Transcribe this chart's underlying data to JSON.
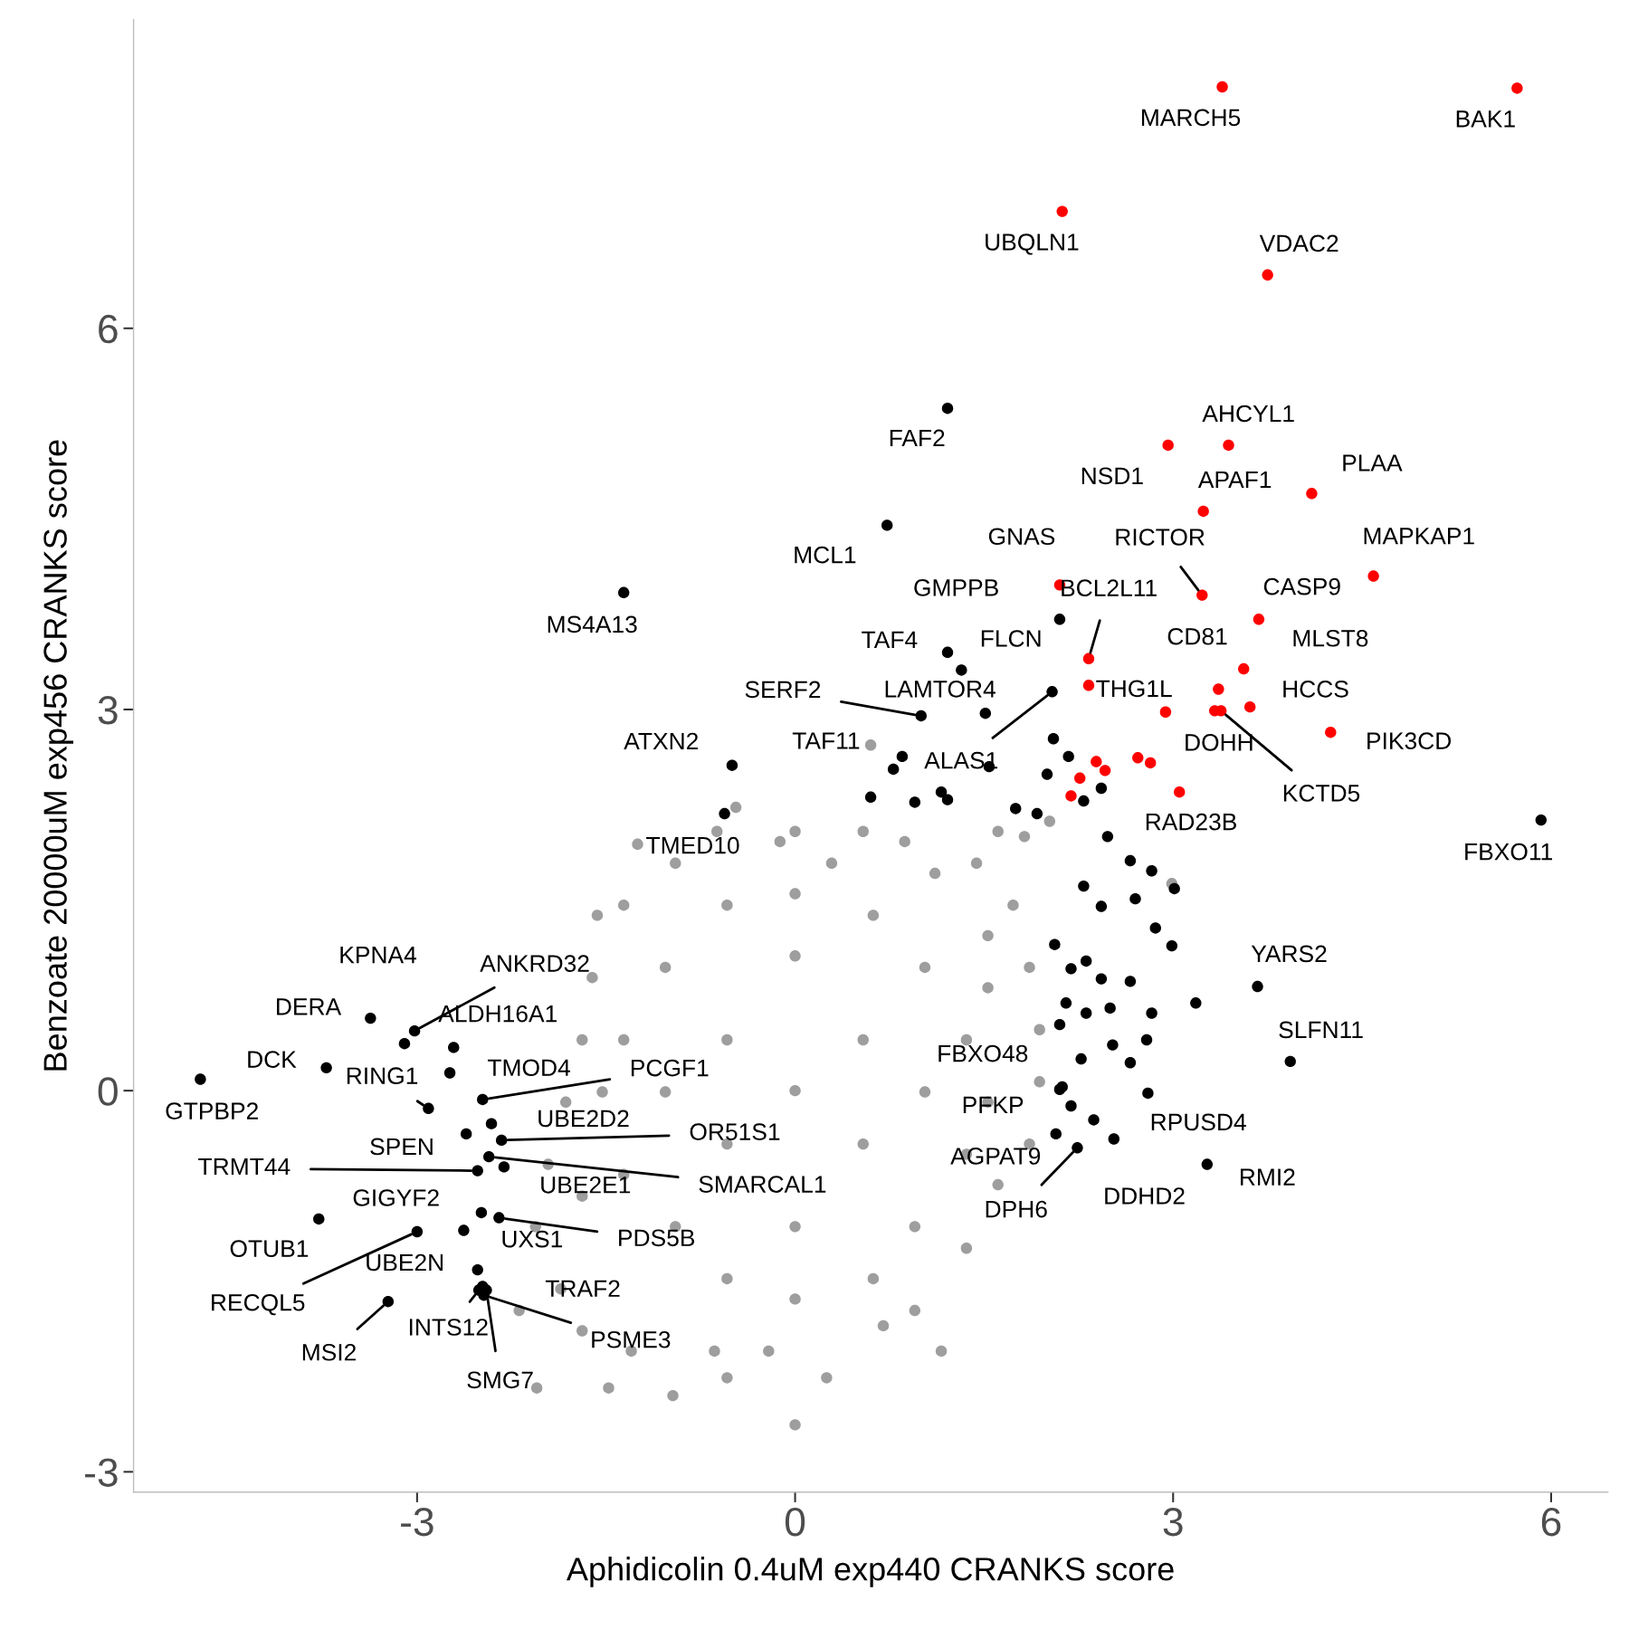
{
  "chart_data": {
    "type": "scatter",
    "xlabel": "Aphidicolin 0.4uM exp440 CRANKS score",
    "ylabel": "Benzoate 20000uM exp456 CRANKS score",
    "xlim": [
      -5.25,
      6.45
    ],
    "ylim": [
      -3.16,
      8.43
    ],
    "xticks": [
      -3,
      0,
      3,
      6
    ],
    "yticks": [
      -3,
      0,
      3,
      6
    ],
    "grid": false,
    "marker": "circle",
    "series": [
      {
        "color": "#9e9e9e",
        "x": [
          0,
          -0.54,
          -0.97,
          -1.48,
          -1.3,
          -1.69,
          -1.86,
          -2.05,
          -2.19,
          -2.06,
          -1.96,
          -1.82,
          -1.69,
          -1.61,
          -1.57,
          -1.36,
          -1.25,
          -0.95,
          -0.62,
          -0.47,
          -0.12,
          0,
          0.29,
          0.54,
          0.6,
          0.87,
          1.11,
          1.44,
          1.61,
          1.82,
          2.02,
          1.73,
          1.86,
          1.94,
          1.94,
          1.86,
          1.61,
          1.36,
          1.16,
          0.95,
          0.7,
          0.25,
          -0.21,
          -0.64,
          2.99,
          0,
          -0.54,
          0.54,
          -0.54,
          0.54,
          0,
          0,
          -1.03,
          1.03,
          -1.03,
          1.03,
          -0.95,
          0.95,
          -1.36,
          1.36,
          -1.36,
          1.36,
          0,
          0,
          -0.54,
          0.62,
          -0.54,
          0.62,
          1.53,
          1.53,
          -1.69,
          -1.53,
          1.53
        ],
        "values": [
          -2.63,
          -2.26,
          -2.4,
          -2.34,
          -2.05,
          -1.89,
          -1.56,
          -2.34,
          -1.73,
          -1.07,
          -0.58,
          -0.09,
          0.4,
          0.89,
          1.38,
          1.46,
          1.94,
          1.79,
          2.04,
          2.23,
          1.96,
          2.04,
          1.79,
          2.04,
          2.72,
          1.96,
          1.71,
          1.79,
          2.04,
          2.0,
          2.12,
          1.46,
          0.97,
          0.48,
          0.07,
          -0.42,
          -0.74,
          -1.24,
          -2.05,
          -1.73,
          -1.85,
          -2.26,
          -2.05,
          -2.05,
          1.63,
          0,
          0.4,
          0.4,
          -0.42,
          -0.42,
          1.06,
          -1.07,
          -0.01,
          -0.01,
          0.97,
          0.97,
          -1.07,
          -1.07,
          0.4,
          0.4,
          -0.66,
          -0.5,
          1.55,
          -1.64,
          1.46,
          1.38,
          -1.48,
          -1.48,
          0.81,
          -0.09,
          -0.83,
          -0.01,
          1.22
        ]
      },
      {
        "color": "#000000",
        "x": [
          1.21,
          0.73,
          -1.36,
          2.1,
          1.21,
          1.32,
          1.0,
          1.51,
          -0.5,
          0.85,
          2.04,
          -0.56,
          2.48,
          5.92,
          -3.1,
          -3.02,
          -3.37,
          -2.71,
          3.67,
          -3.72,
          -2.91,
          -2.74,
          -2.48,
          3.93,
          2.1,
          -4.72,
          2.19,
          -2.41,
          -2.33,
          2.53,
          -2.61,
          2.07,
          -2.52,
          -2.43,
          -2.31,
          3.27,
          2.37,
          2.24,
          -2.63,
          -3.78,
          -2.49,
          -2.35,
          -2.52,
          -3.0,
          -2.48,
          -3.23,
          -2.51,
          -2.47,
          -2.45,
          0.78,
          0.6,
          0.95,
          1.16,
          1.21,
          1.54,
          1.75,
          1.92,
          2.17,
          2.0,
          2.05,
          2.29,
          2.43,
          2.29,
          2.43,
          2.66,
          2.83,
          2.7,
          2.86,
          2.99,
          3.01,
          2.06,
          2.19,
          2.31,
          2.43,
          2.66,
          2.15,
          2.1,
          2.31,
          2.5,
          2.83,
          2.79,
          2.52,
          2.66,
          2.27,
          3.18,
          2.8,
          2.12
        ],
        "values": [
          5.37,
          4.45,
          3.92,
          3.71,
          3.45,
          3.31,
          2.95,
          2.97,
          2.56,
          2.63,
          3.14,
          2.18,
          2.0,
          2.13,
          0.37,
          0.47,
          0.57,
          0.34,
          0.82,
          0.18,
          -0.14,
          0.14,
          -0.07,
          0.23,
          0.01,
          0.09,
          -0.12,
          -0.26,
          -0.39,
          -0.38,
          -0.34,
          -0.34,
          -0.63,
          -0.52,
          -0.6,
          -0.58,
          -0.23,
          -0.45,
          -1.1,
          -1.01,
          -0.96,
          -1.0,
          -1.41,
          -1.11,
          -1.54,
          -1.66,
          -1.57,
          -1.61,
          -1.57,
          2.53,
          2.31,
          2.27,
          2.35,
          2.29,
          2.55,
          2.22,
          2.18,
          2.63,
          2.49,
          2.77,
          2.28,
          2.38,
          1.61,
          1.45,
          1.81,
          1.73,
          1.51,
          1.28,
          1.14,
          1.59,
          1.15,
          0.96,
          1.02,
          0.88,
          0.86,
          0.69,
          0.52,
          0.61,
          0.65,
          0.61,
          0.4,
          0.36,
          0.22,
          0.25,
          0.69,
          -0.02,
          0.03
        ]
      },
      {
        "color": "#ff0000",
        "x": [
          3.39,
          5.73,
          2.12,
          3.75,
          3.44,
          2.96,
          3.24,
          4.1,
          4.59,
          3.23,
          2.1,
          3.68,
          2.33,
          3.36,
          3.56,
          2.33,
          3.61,
          3.33,
          3.38,
          4.25,
          2.94,
          2.39,
          2.46,
          2.26,
          2.19,
          2.72,
          2.82,
          3.05
        ],
        "values": [
          7.9,
          7.89,
          6.92,
          6.42,
          5.08,
          5.08,
          4.56,
          4.7,
          4.05,
          3.9,
          3.98,
          3.71,
          3.4,
          3.16,
          3.32,
          3.19,
          3.02,
          2.99,
          2.99,
          2.82,
          2.98,
          2.59,
          2.52,
          2.46,
          2.32,
          2.62,
          2.58,
          2.35
        ]
      }
    ],
    "annotations": [
      {
        "text": "MARCH5",
        "x": 3.39,
        "y": 7.9
      },
      {
        "text": "BAK1",
        "x": 5.73,
        "y": 7.89
      },
      {
        "text": "UBQLN1",
        "x": 2.12,
        "y": 6.92
      },
      {
        "text": "VDAC2",
        "x": 3.75,
        "y": 6.42
      },
      {
        "text": "FAF2",
        "x": 1.21,
        "y": 5.37
      },
      {
        "text": "AHCYL1",
        "x": 3.44,
        "y": 5.08
      },
      {
        "text": "NSD1",
        "x": 2.96,
        "y": 5.08
      },
      {
        "text": "APAF1",
        "x": 3.24,
        "y": 4.56
      },
      {
        "text": "PLAA",
        "x": 4.1,
        "y": 4.7
      },
      {
        "text": "MCL1",
        "x": 0.73,
        "y": 4.45
      },
      {
        "text": "GNAS",
        "x": 2.1,
        "y": 3.98
      },
      {
        "text": "RICTOR",
        "x": 3.23,
        "y": 3.9
      },
      {
        "text": "MAPKAP1",
        "x": 4.59,
        "y": 4.05
      },
      {
        "text": "MS4A13",
        "x": -1.36,
        "y": 3.92
      },
      {
        "text": "GMPPB",
        "x": 2.1,
        "y": 3.71
      },
      {
        "text": "BCL2L11",
        "x": 2.33,
        "y": 3.4
      },
      {
        "text": "CASP9",
        "x": 3.68,
        "y": 3.71
      },
      {
        "text": "TAF4",
        "x": 1.21,
        "y": 3.45
      },
      {
        "text": "FLCN",
        "x": 1.32,
        "y": 3.31
      },
      {
        "text": "CD81",
        "x": 3.36,
        "y": 3.16
      },
      {
        "text": "MLST8",
        "x": 3.56,
        "y": 3.32
      },
      {
        "text": "THG1L",
        "x": 2.33,
        "y": 3.19
      },
      {
        "text": "HCCS",
        "x": 3.61,
        "y": 3.02
      },
      {
        "text": "SERF2",
        "x": 1.0,
        "y": 2.95
      },
      {
        "text": "LAMTOR4",
        "x": 1.51,
        "y": 2.97
      },
      {
        "text": "ATXN2",
        "x": -0.5,
        "y": 2.56
      },
      {
        "text": "TAF11",
        "x": 0.85,
        "y": 2.63
      },
      {
        "text": "ALAS1",
        "x": 2.04,
        "y": 3.14
      },
      {
        "text": "DOHH",
        "x": 3.33,
        "y": 2.99
      },
      {
        "text": "KCTD5",
        "x": 3.38,
        "y": 2.99
      },
      {
        "text": "PIK3CD",
        "x": 4.25,
        "y": 2.82
      },
      {
        "text": "TMED10",
        "x": -0.56,
        "y": 2.18
      },
      {
        "text": "RAD23B",
        "x": 2.48,
        "y": 2.0
      },
      {
        "text": "FBXO11",
        "x": 5.92,
        "y": 2.13
      },
      {
        "text": "KPNA4",
        "x": -3.37,
        "y": 0.57
      },
      {
        "text": "ANKRD32",
        "x": -3.02,
        "y": 0.47
      },
      {
        "text": "DERA",
        "x": -3.37,
        "y": 0.57
      },
      {
        "text": "ALDH16A1",
        "x": -2.71,
        "y": 0.34
      },
      {
        "text": "YARS2",
        "x": 3.67,
        "y": 0.82
      },
      {
        "text": "DCK",
        "x": -3.72,
        "y": 0.18
      },
      {
        "text": "RING1",
        "x": -2.91,
        "y": -0.14
      },
      {
        "text": "TMOD4",
        "x": -2.74,
        "y": 0.14
      },
      {
        "text": "PCGF1",
        "x": -2.48,
        "y": -0.07
      },
      {
        "text": "SLFN11",
        "x": 3.93,
        "y": 0.23
      },
      {
        "text": "FBXO48",
        "x": 2.1,
        "y": 0.01
      },
      {
        "text": "GTPBP2",
        "x": -4.72,
        "y": 0.09
      },
      {
        "text": "PFKP",
        "x": 2.19,
        "y": -0.12
      },
      {
        "text": "UBE2D2",
        "x": -2.41,
        "y": -0.26
      },
      {
        "text": "OR51S1",
        "x": -2.33,
        "y": -0.39
      },
      {
        "text": "RPUSD4",
        "x": 2.53,
        "y": -0.38
      },
      {
        "text": "SPEN",
        "x": -2.61,
        "y": -0.34
      },
      {
        "text": "AGPAT9",
        "x": 2.07,
        "y": -0.34
      },
      {
        "text": "TRMT44",
        "x": -2.52,
        "y": -0.63
      },
      {
        "text": "SMARCAL1",
        "x": -2.43,
        "y": -0.52
      },
      {
        "text": "UBE2E1",
        "x": -2.31,
        "y": -0.6
      },
      {
        "text": "RMI2",
        "x": 3.27,
        "y": -0.58
      },
      {
        "text": "DDHD2",
        "x": 2.37,
        "y": -0.23
      },
      {
        "text": "DPH6",
        "x": 2.24,
        "y": -0.45
      },
      {
        "text": "GIGYF2",
        "x": -2.63,
        "y": -1.1
      },
      {
        "text": "OTUB1",
        "x": -3.78,
        "y": -1.01
      },
      {
        "text": "UXS1",
        "x": -2.49,
        "y": -0.96
      },
      {
        "text": "PDS5B",
        "x": -2.35,
        "y": -1.0
      },
      {
        "text": "UBE2N",
        "x": -2.52,
        "y": -1.41
      },
      {
        "text": "RECQL5",
        "x": -3.0,
        "y": -1.11
      },
      {
        "text": "TRAF2",
        "x": -2.48,
        "y": -1.54
      },
      {
        "text": "MSI2",
        "x": -3.23,
        "y": -1.66
      },
      {
        "text": "INTS12",
        "x": -2.51,
        "y": -1.57
      },
      {
        "text": "PSME3",
        "x": -2.47,
        "y": -1.61
      },
      {
        "text": "SMG7",
        "x": -2.45,
        "y": -1.57
      }
    ]
  }
}
